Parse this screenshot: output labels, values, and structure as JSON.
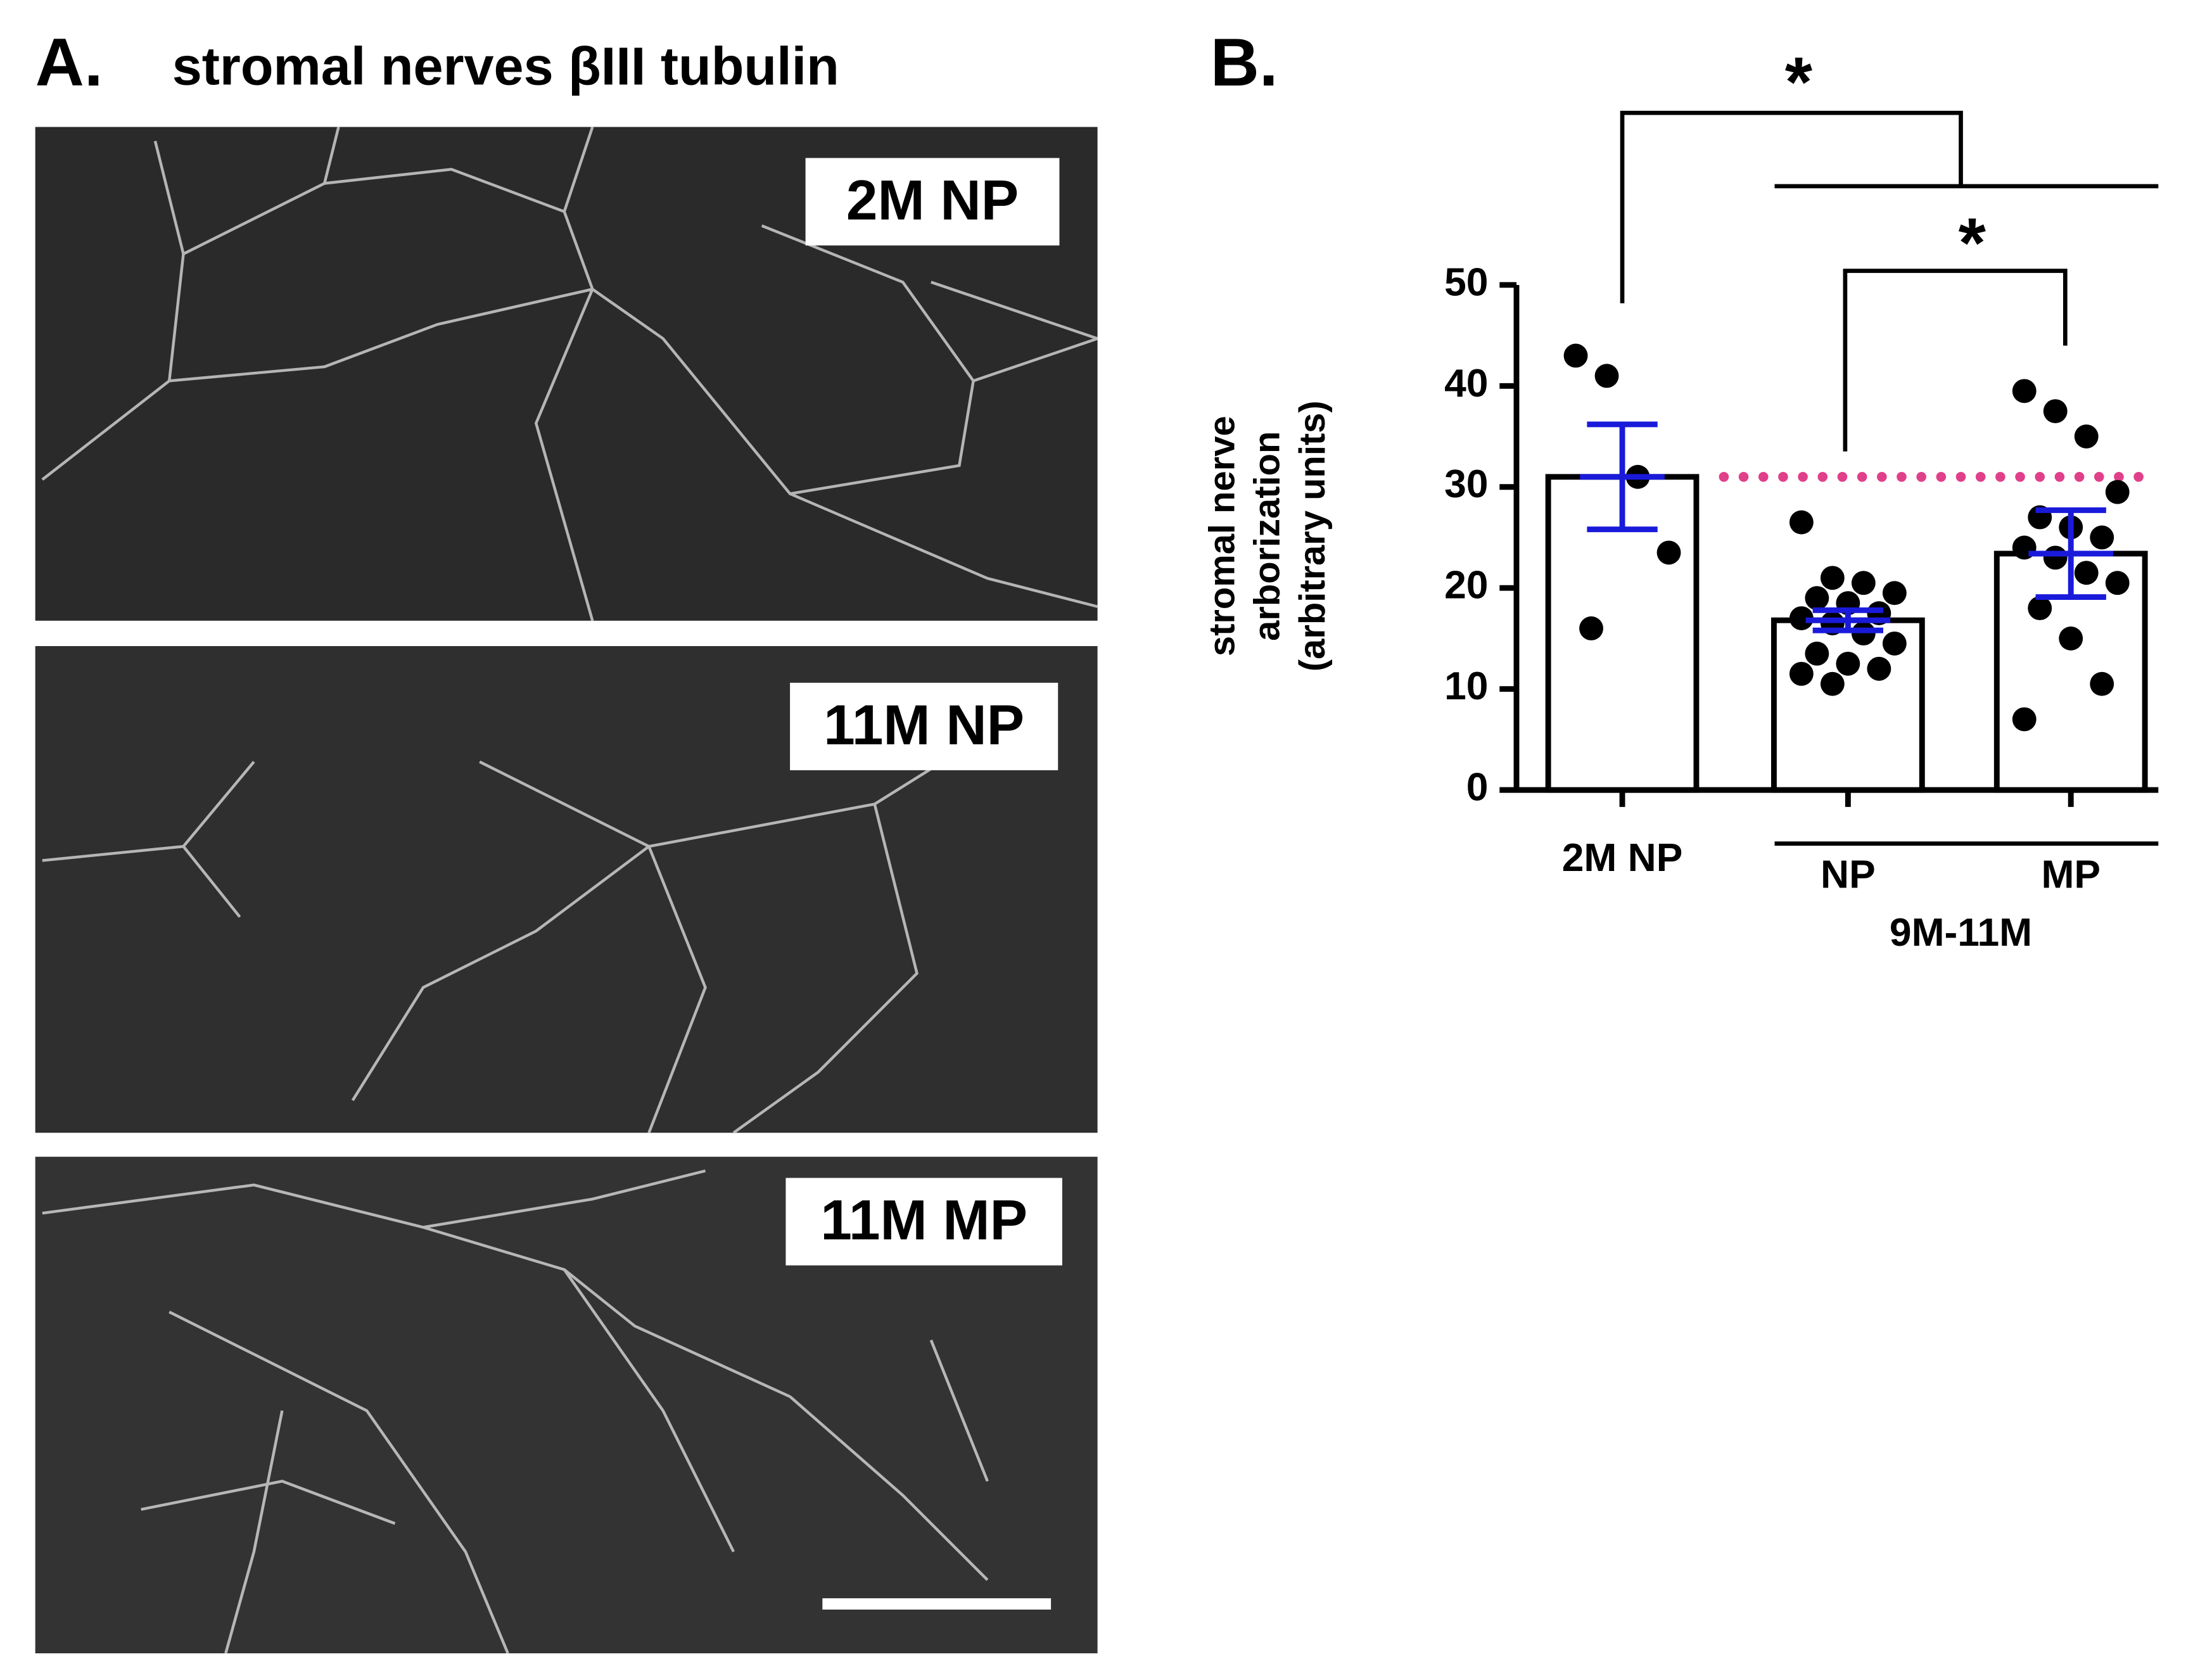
{
  "panel_a": {
    "label": "A.",
    "title": "stromal nerves βIII tubulin",
    "images": [
      {
        "label": "2M NP"
      },
      {
        "label": "11M NP"
      },
      {
        "label": "11M MP"
      }
    ]
  },
  "chart_data": {
    "type": "bar",
    "panel_label": "B.",
    "y_label": [
      "stromal nerve",
      "arborization",
      "(arbitrary units)"
    ],
    "categories": [
      "2M NP",
      "NP",
      "MP"
    ],
    "group_label": "9M-11M",
    "values": [
      31.0,
      16.8,
      23.4
    ],
    "errors": [
      5.2,
      1.0,
      4.3
    ],
    "points": [
      [
        43,
        41,
        31,
        23.5,
        16
      ],
      [
        26.5,
        21,
        20.5,
        19.5,
        19,
        18.5,
        17.5,
        17,
        16.5,
        15.5,
        14.5,
        13.5,
        12.5,
        12,
        11.5,
        10.5
      ],
      [
        39.5,
        37.5,
        35,
        29.5,
        27,
        26,
        25,
        24,
        23,
        21.5,
        20.5,
        18,
        15,
        10.5,
        7
      ]
    ],
    "reference_line": 31,
    "significance": [
      "*",
      "*"
    ],
    "bar_color": "#ffffff",
    "point_color": "#000000",
    "error_color": "#1a1adb",
    "reference_color": "#e0408a",
    "ylim": [
      0,
      50
    ],
    "yticks": [
      0,
      10,
      20,
      30,
      40,
      50
    ]
  }
}
